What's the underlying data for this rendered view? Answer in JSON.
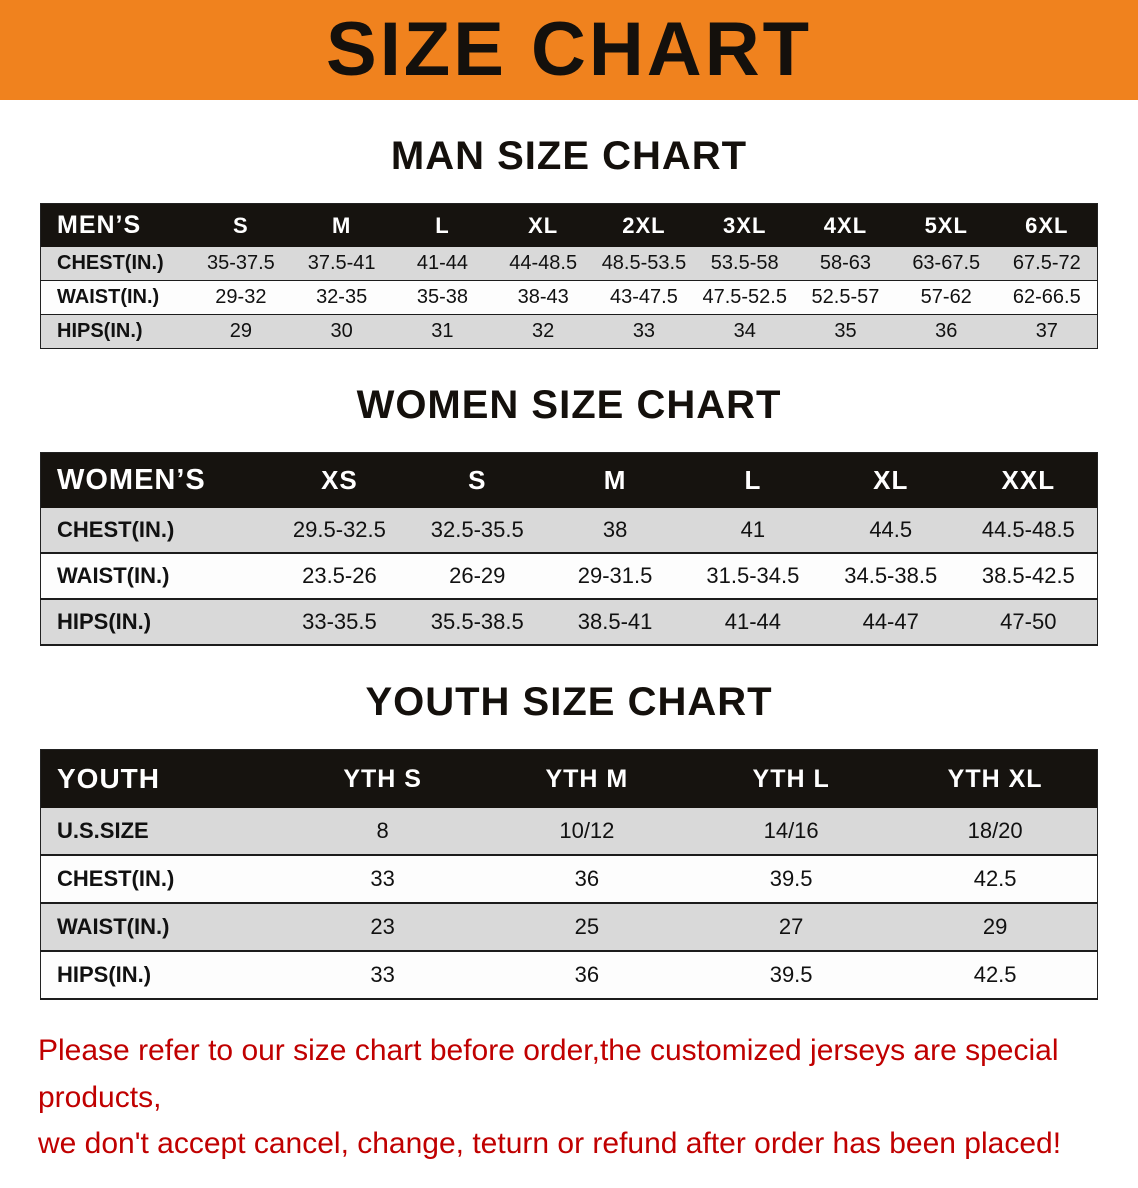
{
  "banner": {
    "title": "SIZE CHART"
  },
  "colors": {
    "banner_bg": "#F0821E",
    "table_header_bg": "#16130F",
    "row_stripe": "#D9D9D9",
    "disclaimer_red": "#C00000"
  },
  "sections": [
    {
      "id": "men",
      "heading": "MAN SIZE CHART",
      "table": {
        "header": [
          "MEN’S",
          "S",
          "M",
          "L",
          "XL",
          "2XL",
          "3XL",
          "4XL",
          "5XL",
          "6XL"
        ],
        "rows": [
          {
            "label": "CHEST(IN.)",
            "values": [
              "35-37.5",
              "37.5-41",
              "41-44",
              "44-48.5",
              "48.5-53.5",
              "53.5-58",
              "58-63",
              "63-67.5",
              "67.5-72"
            ]
          },
          {
            "label": "WAIST(IN.)",
            "values": [
              "29-32",
              "32-35",
              "35-38",
              "38-43",
              "43-47.5",
              "47.5-52.5",
              "52.5-57",
              "57-62",
              "62-66.5"
            ]
          },
          {
            "label": "HIPS(IN.)",
            "values": [
              "29",
              "30",
              "31",
              "32",
              "33",
              "34",
              "35",
              "36",
              "37"
            ]
          }
        ]
      }
    },
    {
      "id": "women",
      "heading": "WOMEN SIZE CHART",
      "table": {
        "header": [
          "WOMEN’S",
          "XS",
          "S",
          "M",
          "L",
          "XL",
          "XXL"
        ],
        "rows": [
          {
            "label": "CHEST(IN.)",
            "values": [
              "29.5-32.5",
              "32.5-35.5",
              "38",
              "41",
              "44.5",
              "44.5-48.5"
            ]
          },
          {
            "label": "WAIST(IN.)",
            "values": [
              "23.5-26",
              "26-29",
              "29-31.5",
              "31.5-34.5",
              "34.5-38.5",
              "38.5-42.5"
            ]
          },
          {
            "label": "HIPS(IN.)",
            "values": [
              "33-35.5",
              "35.5-38.5",
              "38.5-41",
              "41-44",
              "44-47",
              "47-50"
            ]
          }
        ]
      }
    },
    {
      "id": "youth",
      "heading": "YOUTH SIZE CHART",
      "table": {
        "header": [
          "YOUTH",
          "YTH S",
          "YTH M",
          "YTH L",
          "YTH XL"
        ],
        "rows": [
          {
            "label": "U.S.SIZE",
            "values": [
              "8",
              "10/12",
              "14/16",
              "18/20"
            ]
          },
          {
            "label": "CHEST(IN.)",
            "values": [
              "33",
              "36",
              "39.5",
              "42.5"
            ]
          },
          {
            "label": "WAIST(IN.)",
            "values": [
              "23",
              "25",
              "27",
              "29"
            ]
          },
          {
            "label": "HIPS(IN.)",
            "values": [
              "33",
              "36",
              "39.5",
              "42.5"
            ]
          }
        ]
      }
    }
  ],
  "disclaimer": {
    "line1": "Please refer to our size chart before order,the customized jerseys are special products,",
    "line2": "we don't accept cancel, change, teturn or refund after order has been placed!"
  }
}
